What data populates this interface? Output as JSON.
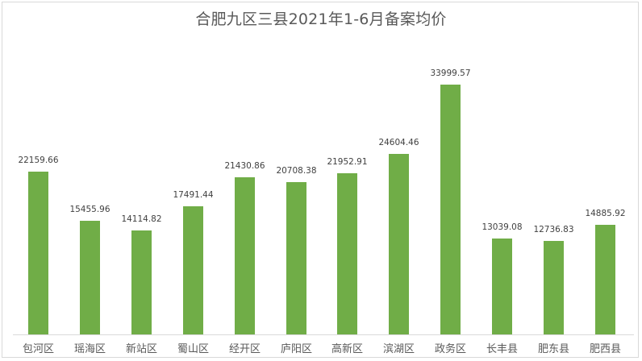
{
  "chart_data": {
    "type": "bar",
    "title": "合肥九区三县2021年1-6月备案均价",
    "xlabel": "",
    "ylabel": "",
    "categories": [
      "包河区",
      "瑶海区",
      "新站区",
      "蜀山区",
      "经开区",
      "庐阳区",
      "高新区",
      "滨湖区",
      "政务区",
      "长丰县",
      "肥东县",
      "肥西县"
    ],
    "values": [
      22159.66,
      15455.96,
      14114.82,
      17491.44,
      21430.86,
      20708.38,
      21952.91,
      24604.46,
      33999.57,
      13039.08,
      12736.83,
      14885.92
    ],
    "value_labels": [
      "22159.66",
      "15455.96",
      "14114.82",
      "17491.44",
      "21430.86",
      "20708.38",
      "21952.91",
      "24604.46",
      "33999.57",
      "13039.08",
      "12736.83",
      "14885.92"
    ],
    "ylim": [
      0,
      34000
    ],
    "grid": false,
    "legend": null,
    "data_labels": true,
    "bar_color": "#70ad47"
  }
}
